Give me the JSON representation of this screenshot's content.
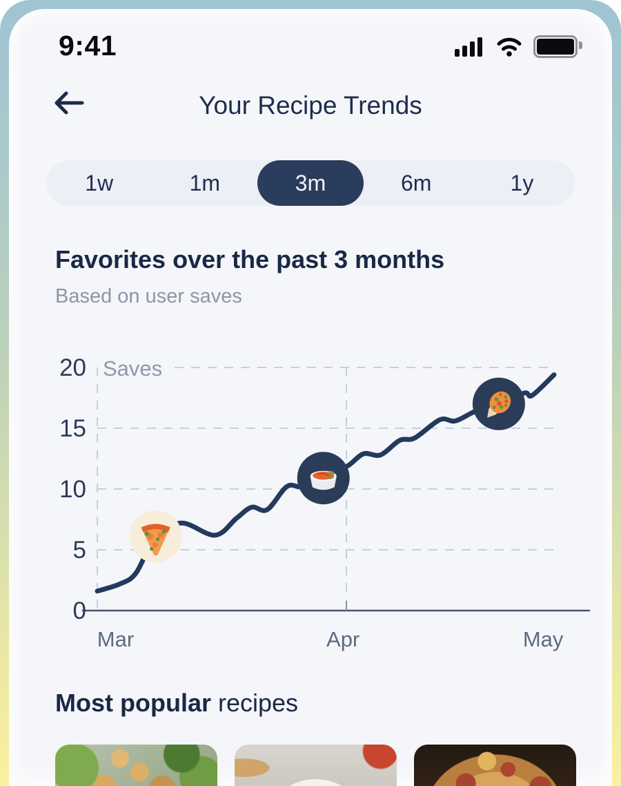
{
  "status_bar": {
    "time": "9:41",
    "icons": [
      "signal-strength",
      "wifi",
      "battery"
    ]
  },
  "header": {
    "title": "Your Recipe Trends",
    "back_icon": "arrow-left"
  },
  "time_range": {
    "options": [
      "1w",
      "1m",
      "3m",
      "6m",
      "1y"
    ],
    "selected": "3m"
  },
  "section": {
    "title": "Favorites over the past 3 months",
    "subtitle": "Based on user saves"
  },
  "chart_data": {
    "type": "line",
    "title": "Favorites over the past 3 months",
    "subtitle": "Based on user saves",
    "series_label": "Saves",
    "categories": [
      "Mar",
      "Apr",
      "May"
    ],
    "yticks": [
      0,
      5,
      10,
      15,
      20
    ],
    "ylim": [
      0,
      20
    ],
    "grid": "dashed",
    "legend": "none",
    "line_color": "#233a5e",
    "points": [
      [
        0.0,
        1.6
      ],
      [
        0.05,
        2.2
      ],
      [
        0.085,
        3.1
      ],
      [
        0.128,
        6.1
      ],
      [
        0.185,
        7.2
      ],
      [
        0.258,
        6.2
      ],
      [
        0.305,
        7.6
      ],
      [
        0.338,
        8.5
      ],
      [
        0.372,
        8.3
      ],
      [
        0.415,
        10.2
      ],
      [
        0.448,
        10.2
      ],
      [
        0.495,
        10.9
      ],
      [
        0.548,
        11.9
      ],
      [
        0.583,
        12.9
      ],
      [
        0.62,
        12.8
      ],
      [
        0.662,
        14.0
      ],
      [
        0.695,
        14.2
      ],
      [
        0.75,
        15.7
      ],
      [
        0.784,
        15.6
      ],
      [
        0.828,
        16.4
      ],
      [
        0.879,
        17.0
      ],
      [
        0.935,
        17.9
      ],
      [
        0.952,
        17.7
      ],
      [
        1.0,
        19.4
      ]
    ],
    "markers": [
      {
        "icon": "pizza-slice",
        "frac": 0.128,
        "value": 6.1,
        "bg": "#f8edda"
      },
      {
        "icon": "soup-bowl",
        "frac": 0.495,
        "value": 10.9,
        "bg": "#2b3c59"
      },
      {
        "icon": "flatbread-cone",
        "frac": 0.879,
        "value": 17.0,
        "bg": "#2b3c59"
      }
    ]
  },
  "popular": {
    "title_bold": "Most popular",
    "title_regular": "recipes",
    "cards": [
      {
        "name": "chickpea-salad-photo"
      },
      {
        "name": "tomato-soup-photo"
      },
      {
        "name": "pepperoni-pizza-photo"
      }
    ]
  },
  "colors": {
    "accent_navy": "#2b3d5c",
    "screen_bg": "#f5f6f9",
    "marker_cream": "#f8edda",
    "muted_text": "#8d95a7"
  }
}
